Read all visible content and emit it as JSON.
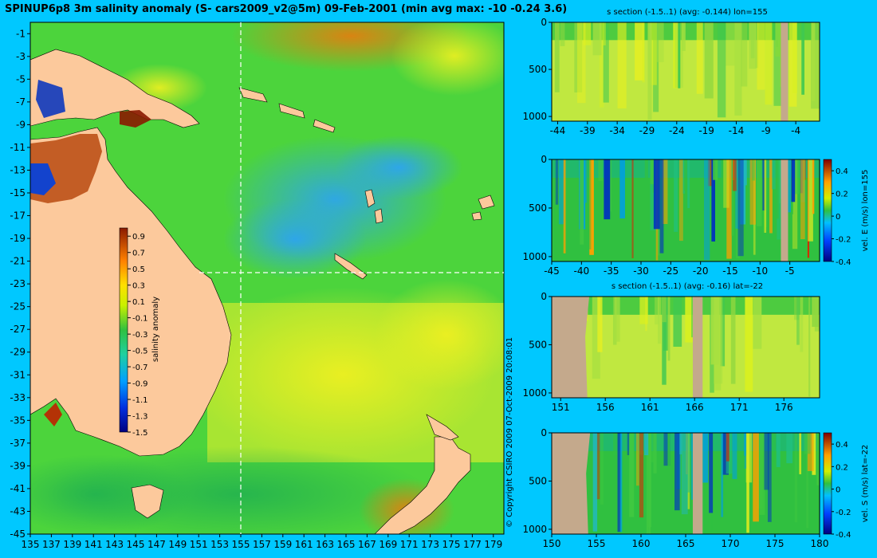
{
  "title": "SPINUP6p8 3m salinity anomaly (S- cars2009_v2@5m) 09-Feb-2001 (min avg max: -10 -0.24 3.6)",
  "copyright": "© Copyright CSIRO 2009   07-Oct-2009 20:08:01",
  "colors": {
    "background": "#00c8ff",
    "land": "#fcc99c",
    "section_mask": "#c4a98c"
  },
  "chart_data": [
    {
      "id": "map",
      "type": "heatmap",
      "title": "SPINUP6p8 3m salinity anomaly (S- cars2009_v2@5m) 09-Feb-2001 (min avg max: -10 -0.24 3.6)",
      "xlim": [
        135,
        180
      ],
      "ylim": [
        -45,
        0
      ],
      "x_ticks": [
        "135",
        "137",
        "139",
        "141",
        "143",
        "145",
        "147",
        "149",
        "151",
        "153",
        "155",
        "157",
        "159",
        "161",
        "163",
        "165",
        "167",
        "169",
        "171",
        "173",
        "175",
        "177",
        "179"
      ],
      "y_ticks": [
        "-1",
        "-3",
        "-5",
        "-7",
        "-9",
        "-11",
        "-13",
        "-15",
        "-17",
        "-19",
        "-21",
        "-23",
        "-25",
        "-27",
        "-29",
        "-31",
        "-33",
        "-35",
        "-37",
        "-39",
        "-41",
        "-43",
        "-45"
      ],
      "crosshair": {
        "lon": 155,
        "lat": -22
      },
      "colorbar": {
        "label": "salinity anomaly",
        "range": [
          -1.5,
          1.0
        ],
        "ticks": [
          "0.9",
          "0.7",
          "0.5",
          "0.3",
          "0.1",
          "-0.1",
          "-0.3",
          "-0.5",
          "-0.7",
          "-0.9",
          "-1.1",
          "-1.3",
          "-1.5"
        ]
      }
    },
    {
      "id": "sec1",
      "type": "heatmap",
      "title": "s section (-1.5..1) (avg: -0.144) lon=155",
      "xlim": [
        -45,
        0
      ],
      "ylim": [
        1050,
        0
      ],
      "x_ticks": [
        "-44",
        "-39",
        "-34",
        "-29",
        "-24",
        "-19",
        "-14",
        "-9",
        "-4"
      ],
      "y_ticks": [
        "0",
        "500",
        "1000"
      ]
    },
    {
      "id": "sec2",
      "type": "heatmap",
      "title": "",
      "xlim": [
        -45,
        0
      ],
      "ylim": [
        1050,
        0
      ],
      "x_ticks": [
        "-45",
        "-40",
        "-35",
        "-30",
        "-25",
        "-20",
        "-15",
        "-10",
        "-5"
      ],
      "y_ticks": [
        "0",
        "500",
        "1000"
      ],
      "colorbar": {
        "label": "vel. E (m/s) lon=155",
        "range": [
          -0.4,
          0.5
        ],
        "ticks": [
          "0.4",
          "0.2",
          "0",
          "-0.2",
          "-0.4"
        ]
      }
    },
    {
      "id": "sec3",
      "type": "heatmap",
      "title": "s section (-1.5..1) (avg: -0.16) lat=-22",
      "xlim": [
        150,
        180
      ],
      "ylim": [
        1050,
        0
      ],
      "x_ticks": [
        "151",
        "156",
        "161",
        "166",
        "171",
        "176"
      ],
      "y_ticks": [
        "0",
        "500",
        "1000"
      ]
    },
    {
      "id": "sec4",
      "type": "heatmap",
      "title": "",
      "xlim": [
        150,
        180
      ],
      "ylim": [
        1050,
        0
      ],
      "x_ticks": [
        "150",
        "155",
        "160",
        "165",
        "170",
        "175",
        "180"
      ],
      "y_ticks": [
        "0",
        "500",
        "1000"
      ],
      "colorbar": {
        "label": "vel. S (m/s) lat=-22",
        "range": [
          -0.4,
          0.5
        ],
        "ticks": [
          "0.4",
          "0.2",
          "0",
          "-0.2",
          "-0.4"
        ]
      }
    }
  ]
}
